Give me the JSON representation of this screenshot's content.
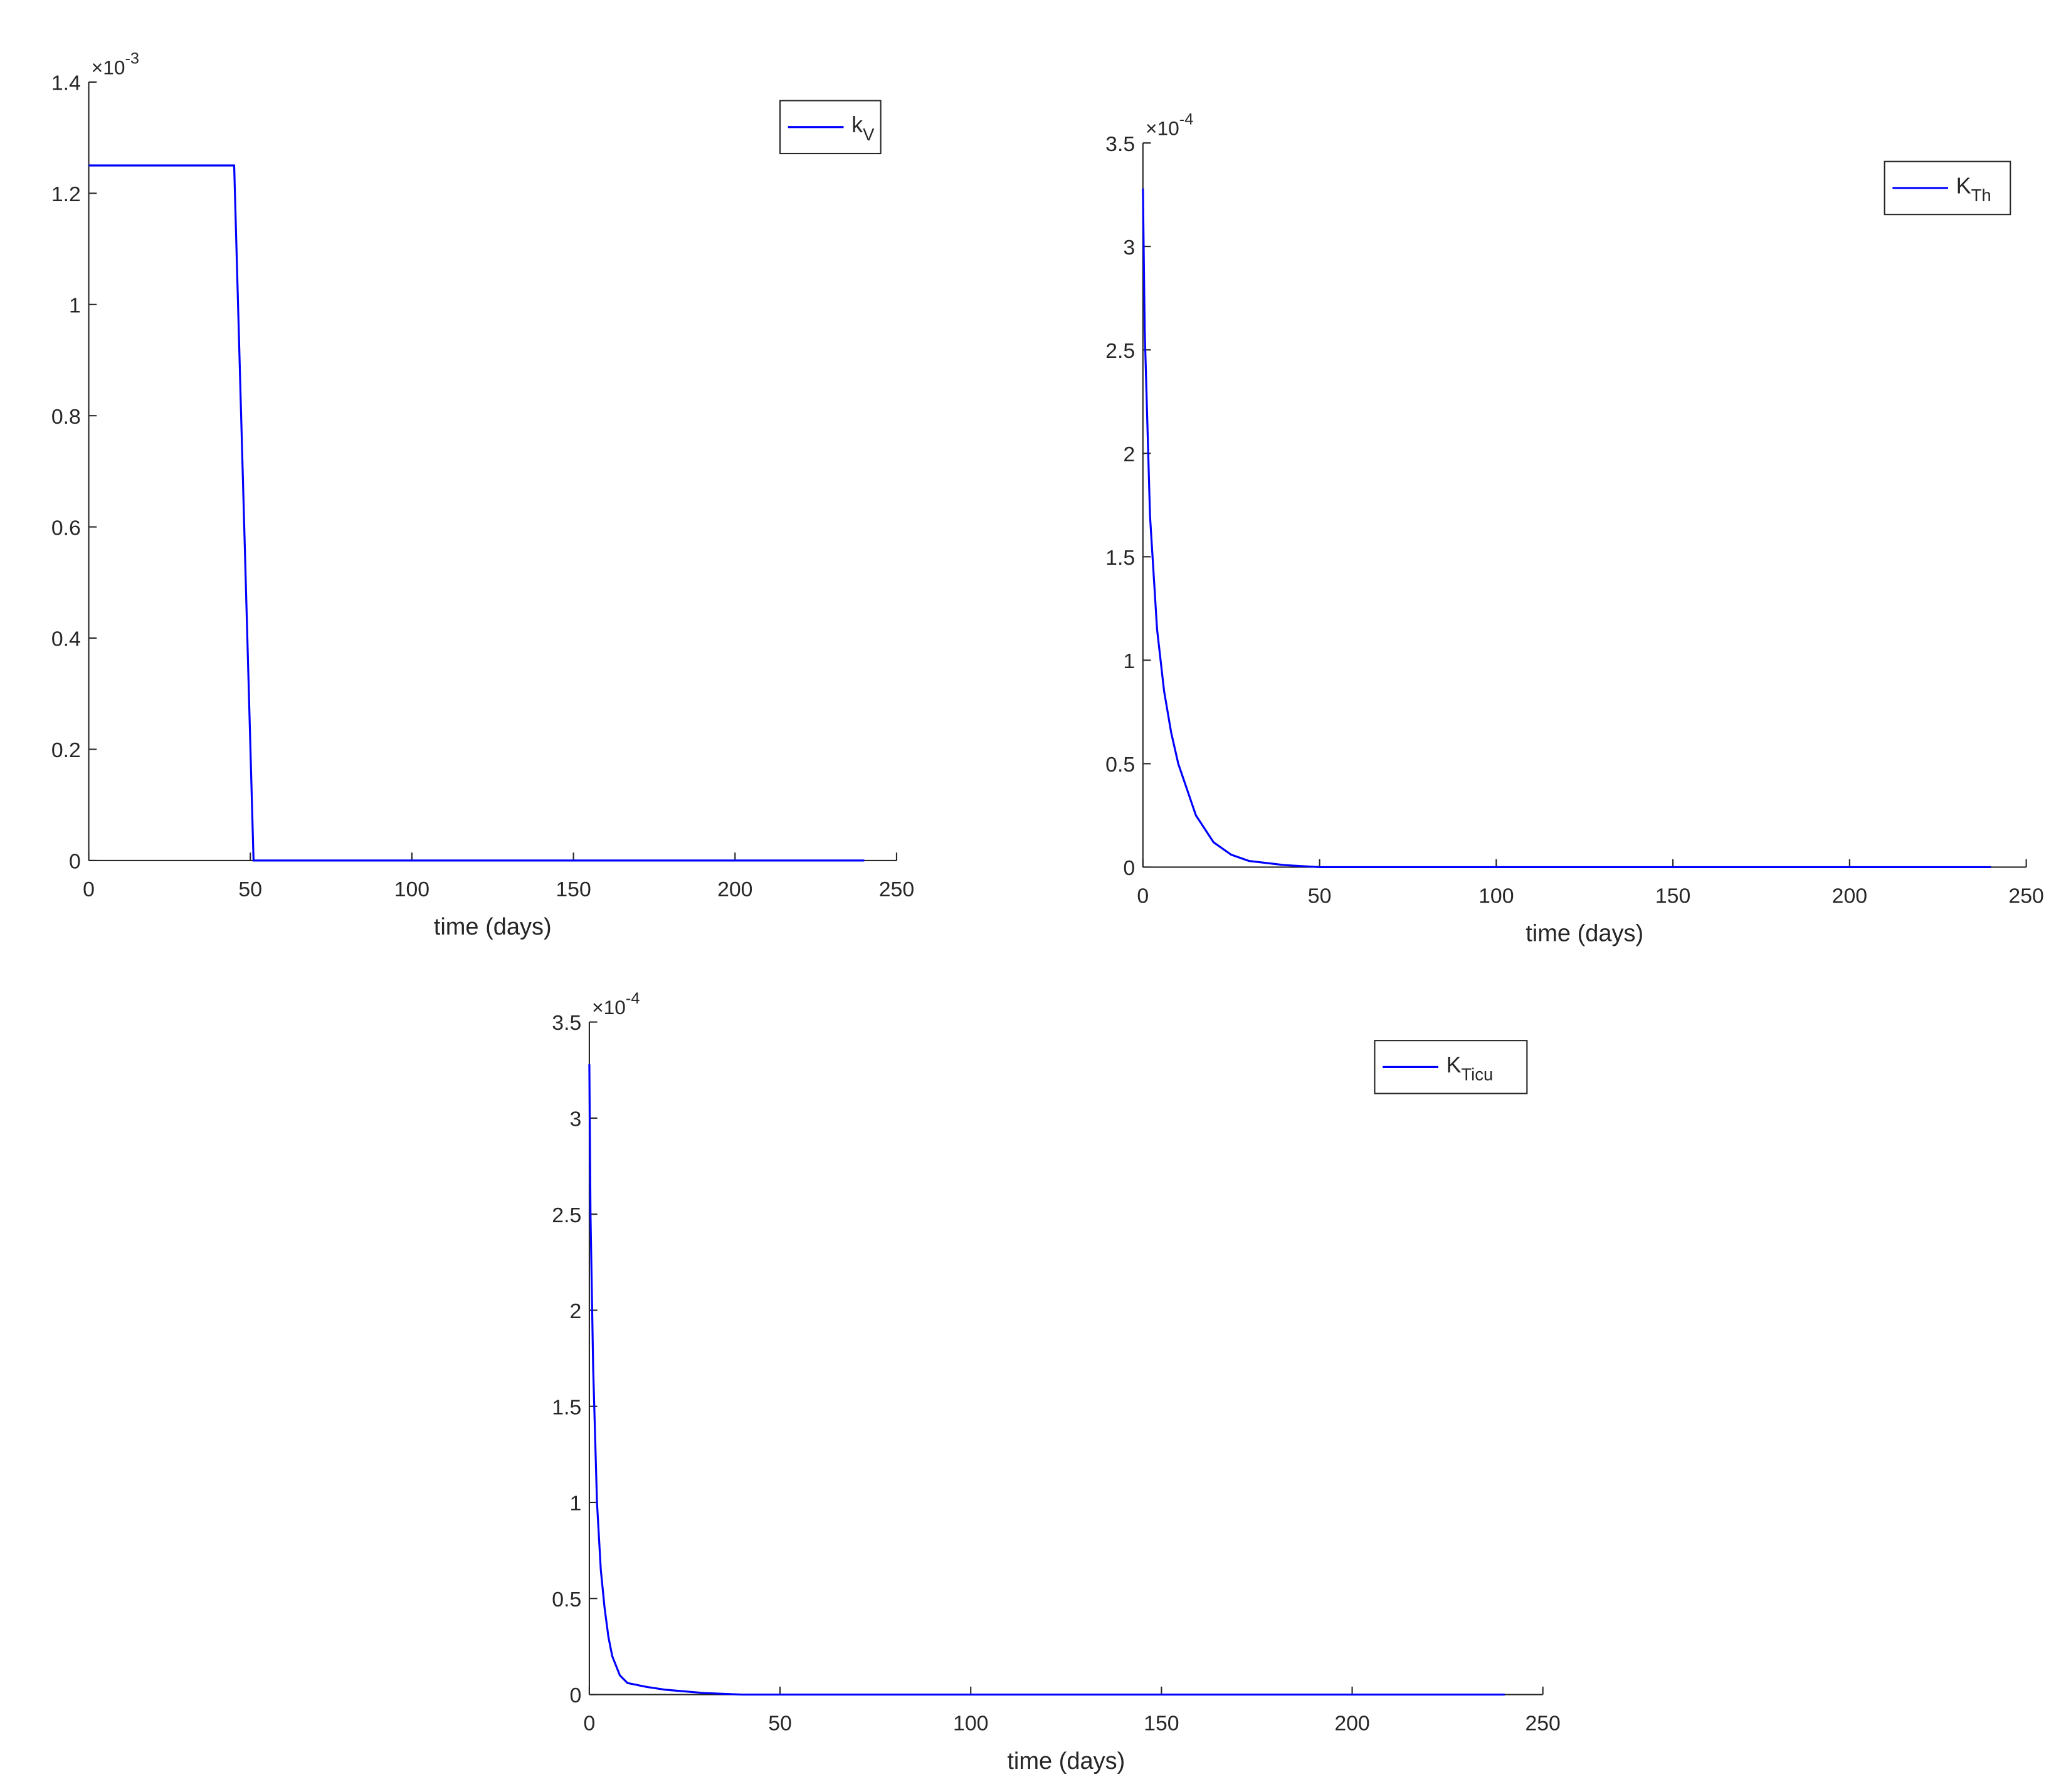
{
  "chart_data": [
    {
      "type": "line",
      "xlabel": "time (days)",
      "y_multiplier": {
        "base": "×10",
        "exponent": "-3"
      },
      "x": [
        0,
        45,
        51,
        240
      ],
      "series": [
        {
          "name": "k",
          "name_subscript": "V",
          "color": "#0000ff",
          "values": [
            1.25,
            1.25,
            0,
            0
          ]
        }
      ],
      "xlim": [
        0,
        250
      ],
      "xticks": [
        0,
        50,
        100,
        150,
        200,
        250
      ],
      "ylim": [
        0,
        1.4
      ],
      "yticks": [
        0,
        0.2,
        0.4,
        0.6,
        0.8,
        1,
        1.2,
        1.4
      ],
      "legend": "northeast"
    },
    {
      "type": "line",
      "xlabel": "time (days)",
      "y_multiplier": {
        "base": "×10",
        "exponent": "-4"
      },
      "x": [
        0,
        0.5,
        2,
        4,
        6,
        8,
        10,
        15,
        20,
        25,
        30,
        40,
        50,
        100,
        150,
        200,
        240
      ],
      "series": [
        {
          "name": "K",
          "name_subscript": "Th",
          "color": "#0000ff",
          "values": [
            3.28,
            2.6,
            1.7,
            1.15,
            0.85,
            0.65,
            0.5,
            0.25,
            0.12,
            0.06,
            0.03,
            0.01,
            0,
            0,
            0,
            0,
            0
          ]
        }
      ],
      "xlim": [
        0,
        250
      ],
      "xticks": [
        0,
        50,
        100,
        150,
        200,
        250
      ],
      "ylim": [
        0,
        3.5
      ],
      "yticks": [
        0,
        0.5,
        1,
        1.5,
        2,
        2.5,
        3,
        3.5
      ],
      "legend": "northeast"
    },
    {
      "type": "line",
      "xlabel": "time (days)",
      "y_multiplier": {
        "base": "×10",
        "exponent": "-4"
      },
      "x": [
        0,
        0.3,
        1,
        2,
        3,
        4,
        5,
        6,
        8,
        10,
        15,
        20,
        30,
        40,
        100,
        150,
        200,
        240
      ],
      "series": [
        {
          "name": "K",
          "name_subscript": "Ticu",
          "color": "#0000ff",
          "values": [
            3.28,
            2.5,
            1.7,
            1.0,
            0.65,
            0.45,
            0.3,
            0.2,
            0.1,
            0.06,
            0.04,
            0.025,
            0.008,
            0,
            0,
            0,
            0,
            0
          ]
        }
      ],
      "xlim": [
        0,
        250
      ],
      "xticks": [
        0,
        50,
        100,
        150,
        200,
        250
      ],
      "ylim": [
        0,
        3.5
      ],
      "yticks": [
        0,
        0.5,
        1,
        1.5,
        2,
        2.5,
        3,
        3.5
      ],
      "legend": "northeast"
    }
  ]
}
